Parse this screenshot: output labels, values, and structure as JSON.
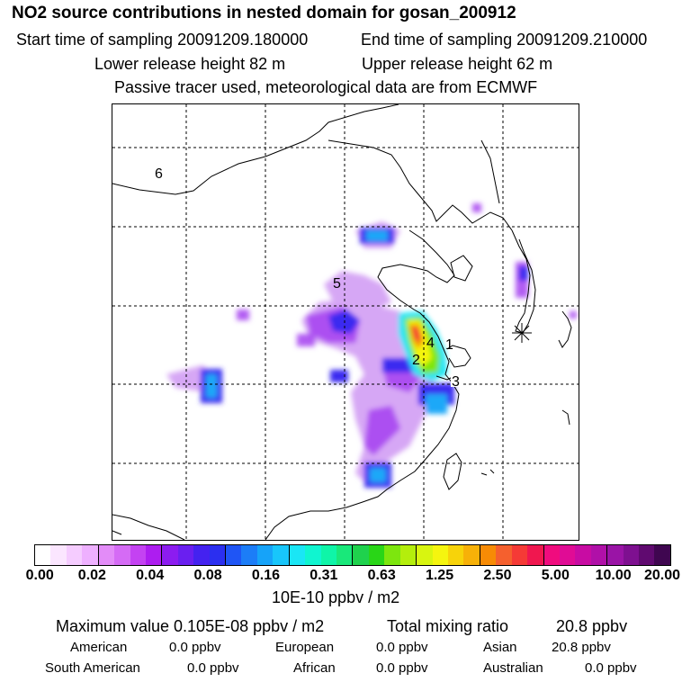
{
  "header": {
    "title": "NO2 source contributions in nested domain for gosan_200912",
    "start_label": "Start time of sampling 20091209.180000",
    "end_label": "End time of sampling 20091209.210000",
    "lower_label": "Lower release height   82 m",
    "upper_label": "Upper release height   62 m",
    "note": "Passive tracer used, meteorological data are from ECMWF"
  },
  "map": {
    "region_labels": [
      "6",
      "5",
      "4",
      "1",
      "2",
      "3"
    ]
  },
  "colorbar": {
    "tick_labels": [
      "0.00",
      "0.02",
      "0.04",
      "0.08",
      "0.16",
      "0.31",
      "0.63",
      "1.25",
      "2.50",
      "5.00",
      "10.00",
      "20.00"
    ],
    "unit": "10E-10 ppbv / m2",
    "colors": [
      "#ffffff",
      "#fbe6ff",
      "#f5ccff",
      "#eeb0ff",
      "#e38cf8",
      "#d56bf5",
      "#c442f2",
      "#ad1df0",
      "#8c1cf0",
      "#6a1ff0",
      "#4422f0",
      "#2b2ff0",
      "#1f55f5",
      "#1c7df7",
      "#16a3f9",
      "#18c6fb",
      "#1ae6f5",
      "#10f5d0",
      "#0ff5a8",
      "#19e87a",
      "#1fd24d",
      "#29d617",
      "#7de60e",
      "#b4ee0c",
      "#d8f510",
      "#f5f50f",
      "#f7d30a",
      "#f7b108",
      "#f78b05",
      "#f5602e",
      "#f53a36",
      "#f0174f",
      "#f00c7e",
      "#e00c95",
      "#c80ca3",
      "#b010a8",
      "#9a14a6",
      "#7e1090",
      "#600a70",
      "#3f0650"
    ]
  },
  "stats": {
    "max_label": "Maximum value  0.105E-08 ppbv / m2",
    "total_label": "Total mixing ratio",
    "total_value": "20.8 ppbv",
    "american_label": "American",
    "american_value": "0.0 ppbv",
    "european_label": "European",
    "european_value": "0.0 ppbv",
    "asian_label": "Asian",
    "asian_value": "20.8 ppbv",
    "south_american_label": "South American",
    "south_american_value": "0.0 ppbv",
    "african_label": "African",
    "african_value": "0.0 ppbv",
    "australian_label": "Australian",
    "australian_value": "0.0 ppbv"
  }
}
